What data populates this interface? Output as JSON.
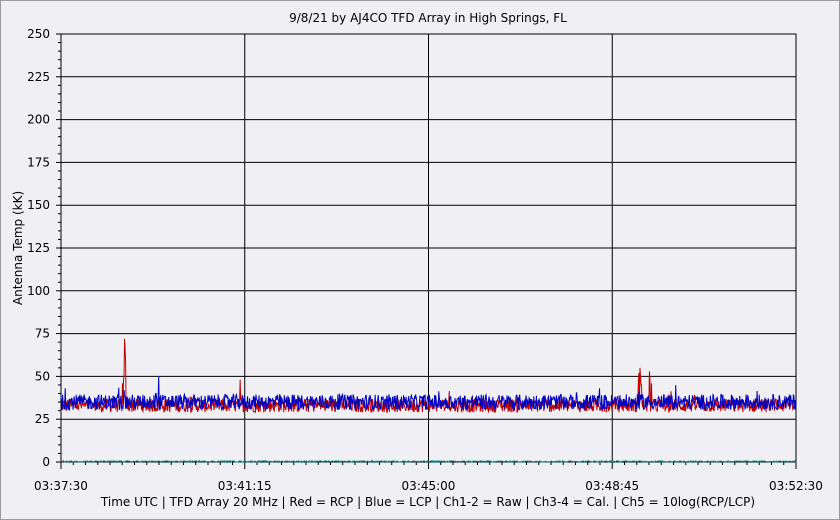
{
  "chart_data": {
    "type": "line",
    "title": "9/8/21  by  AJ4CO TFD Array  in  High Springs, FL",
    "ylabel": "Antenna Temp (kK)",
    "footer": "Time UTC | TFD Array 20 MHz | Red = RCP | Blue = LCP | Ch1-2 = Raw | Ch3-4 = Cal. | Ch5 = 10log(RCP/LCP)",
    "ylim": [
      0,
      250
    ],
    "y_ticks": [
      "0",
      "25",
      "50",
      "75",
      "100",
      "125",
      "150",
      "175",
      "200",
      "225",
      "250"
    ],
    "x_ticks": [
      "03:37:30",
      "03:41:15",
      "03:45:00",
      "03:48:45",
      "03:52:30"
    ],
    "grid": true,
    "series": [
      {
        "name": "RCP",
        "color": "#c00000",
        "baseline": 33,
        "noise": 4,
        "spikes": [
          {
            "x": 0.085,
            "y": 48
          },
          {
            "x": 0.088,
            "y": 44
          },
          {
            "x": 0.0855,
            "y": 50
          },
          {
            "x": 0.0835,
            "y": 46
          },
          {
            "x": 0.0865,
            "y": 72
          },
          {
            "x": 0.087,
            "y": 66
          },
          {
            "x": 0.088,
            "y": 58
          },
          {
            "x": 0.244,
            "y": 48
          },
          {
            "x": 0.7855,
            "y": 47
          },
          {
            "x": 0.7865,
            "y": 52
          },
          {
            "x": 0.7875,
            "y": 55
          },
          {
            "x": 0.7885,
            "y": 50
          },
          {
            "x": 0.7895,
            "y": 45
          },
          {
            "x": 0.8005,
            "y": 53
          },
          {
            "x": 0.8015,
            "y": 48
          },
          {
            "x": 0.8035,
            "y": 46
          }
        ]
      },
      {
        "name": "LCP",
        "color": "#0000c0",
        "baseline": 35,
        "noise": 4.5,
        "spikes": [
          {
            "x": 0.133,
            "y": 50
          },
          {
            "x": 0.129,
            "y": 40
          },
          {
            "x": 0.0855,
            "y": 42
          },
          {
            "x": 0.7865,
            "y": 41
          }
        ]
      },
      {
        "name": "Ch5",
        "color": "#008080",
        "baseline": 0.3,
        "noise": 0.4,
        "spikes": []
      }
    ]
  }
}
